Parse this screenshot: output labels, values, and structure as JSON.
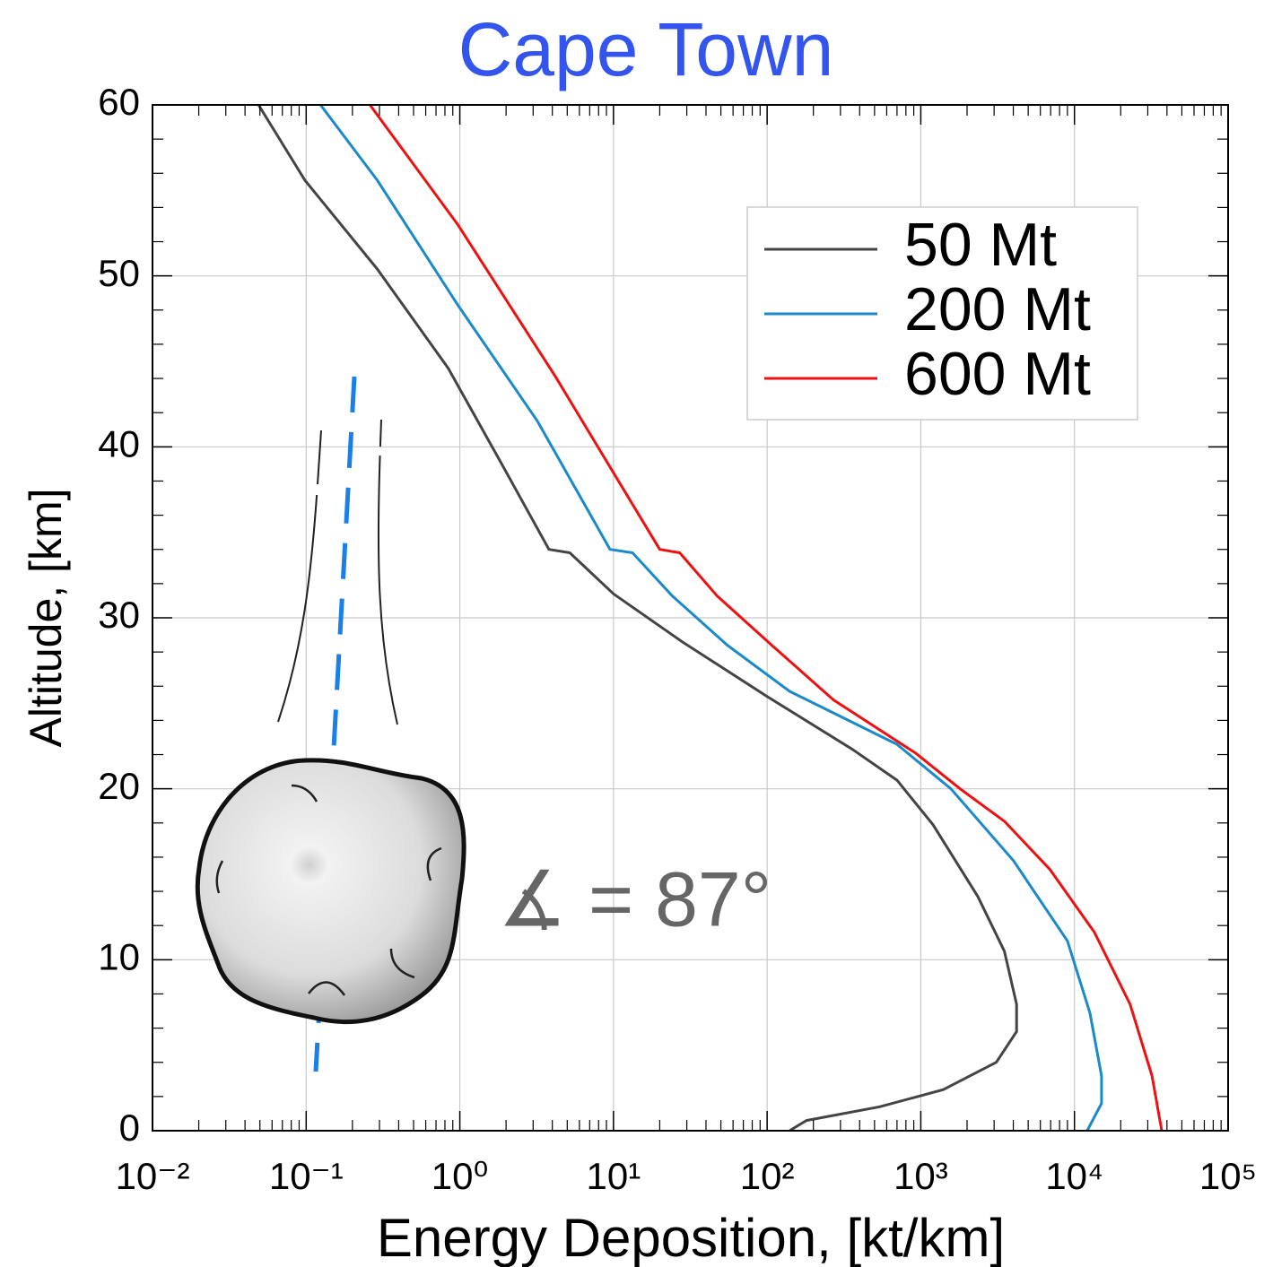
{
  "chart_data": {
    "type": "line",
    "title": "Cape Town",
    "title_color": "#3355ee",
    "x_label": "Energy Deposition, [kt/km]",
    "y_label": "Altitude, [km]",
    "annotation": "∡ = 87°",
    "xscale": "log",
    "grid": true,
    "legend": "upper right",
    "xlim": [
      0.01,
      100000
    ],
    "xticks": [
      {
        "value": 0.01,
        "label": "10⁻²"
      },
      {
        "value": 0.1,
        "label": "10⁻¹"
      },
      {
        "value": 1,
        "label": "10⁰"
      },
      {
        "value": 10,
        "label": "10¹"
      },
      {
        "value": 100,
        "label": "10²"
      },
      {
        "value": 1000,
        "label": "10³"
      },
      {
        "value": 10000,
        "label": "10⁴"
      },
      {
        "value": 100000,
        "label": "10⁵"
      }
    ],
    "ylim": [
      0,
      60
    ],
    "yticks": [
      0,
      10,
      20,
      30,
      40,
      50,
      60
    ],
    "series": [
      {
        "name": "50 Mt",
        "color": "#444444",
        "x": [
          0.049,
          0.098,
          0.29,
          0.84,
          1.9,
          3.8,
          5.2,
          10,
          28,
          100,
          360,
          700,
          1200,
          2350,
          3500,
          4200,
          4200,
          3100,
          1400,
          540,
          180,
          140
        ],
        "values": [
          60,
          55.6,
          50.4,
          44.6,
          38.9,
          34,
          33.8,
          31.4,
          28.6,
          25.4,
          22.3,
          20.5,
          17.9,
          13.7,
          10.5,
          7.4,
          5.8,
          4,
          2.4,
          1.4,
          0.6,
          0
        ]
      },
      {
        "name": "200 Mt",
        "color": "#1a8ac8",
        "x": [
          0.124,
          0.29,
          0.97,
          3.2,
          9.5,
          13.3,
          24,
          55,
          140,
          700,
          1570,
          4000,
          9000,
          12600,
          15000,
          15000,
          12100
        ],
        "values": [
          60,
          55.6,
          48.3,
          41.5,
          34,
          33.8,
          31.3,
          28.4,
          25.7,
          22.6,
          20,
          15.8,
          11.1,
          6.9,
          3.2,
          1.6,
          0
        ]
      },
      {
        "name": "600 Mt",
        "color": "#ee1111",
        "x": [
          0.26,
          0.97,
          4.2,
          20,
          27,
          47,
          107,
          270,
          920,
          1800,
          3500,
          6900,
          13500,
          23000,
          32000,
          37000
        ],
        "values": [
          60,
          53,
          44.1,
          34,
          33.8,
          31.3,
          28.4,
          25.2,
          22.1,
          20,
          18.1,
          15.3,
          11.6,
          7.4,
          3.2,
          0
        ]
      }
    ]
  }
}
